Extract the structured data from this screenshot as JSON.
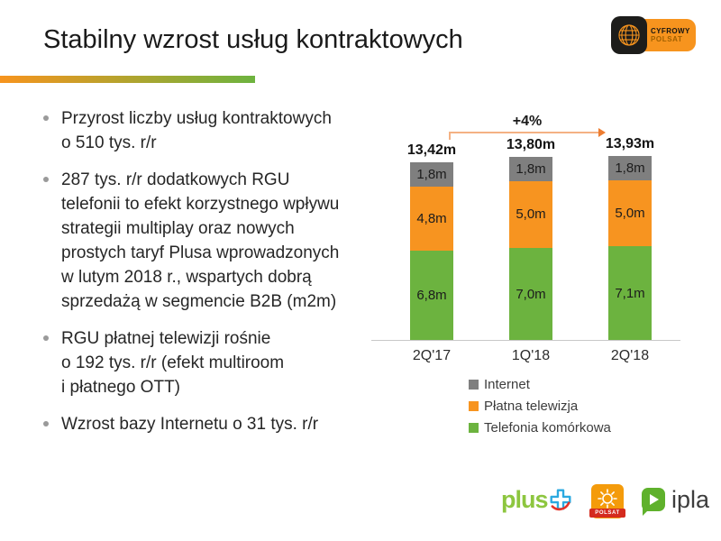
{
  "slide": {
    "title": "Stabilny wzrost usług kontraktowych",
    "bullets": [
      {
        "lines": [
          "Przyrost liczby usług kontraktowych",
          "o 510 tys. r/r"
        ]
      },
      {
        "lines": [
          "287 tys. r/r dodatkowych RGU",
          "telefonii to efekt korzystnego wpływu",
          "strategii multiplay oraz nowych",
          "prostych taryf Plusa wprowadzonych",
          "w lutym 2018 r., wspartych dobrą",
          "sprzedażą w segmencie B2B (m2m)"
        ]
      },
      {
        "lines": [
          "RGU płatnej telewizji rośnie",
          "o 192 tys. r/r (efekt multiroom",
          "i płatnego OTT)"
        ]
      },
      {
        "lines": [
          "Wzrost bazy Internetu o 31 tys. r/r"
        ]
      }
    ]
  },
  "chart_data": {
    "type": "bar",
    "stacked": true,
    "title": "",
    "categories": [
      "2Q'17",
      "1Q'18",
      "2Q'18"
    ],
    "series": [
      {
        "name": "Telefonia komórkowa",
        "color": "#6CB33F",
        "values": [
          6.8,
          7.0,
          7.1
        ],
        "value_labels": [
          "6,8m",
          "7,0m",
          "7,1m"
        ]
      },
      {
        "name": "Płatna telewizja",
        "color": "#F79420",
        "values": [
          4.8,
          5.0,
          5.0
        ],
        "value_labels": [
          "4,8m",
          "5,0m",
          "5,0m"
        ]
      },
      {
        "name": "Internet",
        "color": "#7F7F7F",
        "values": [
          1.8,
          1.8,
          1.8
        ],
        "value_labels": [
          "1,8m",
          "1,8m",
          "1,8m"
        ]
      }
    ],
    "totals": [
      13.42,
      13.8,
      13.93
    ],
    "total_labels": [
      "13,42m",
      "13,80m",
      "13,93m"
    ],
    "growth_annotation": "+4%",
    "unit_suffix": "m",
    "ylim": [
      0,
      14.5
    ],
    "grid": false,
    "legend_position": "bottom",
    "legend": [
      {
        "label": "Internet",
        "color": "#7F7F7F"
      },
      {
        "label": "Płatna telewizja",
        "color": "#F79420"
      },
      {
        "label": "Telefonia komórkowa",
        "color": "#6CB33F"
      }
    ]
  },
  "branding": {
    "cyfrowy_polsat": {
      "line1": "CYFROWY",
      "line2": "POLSAT"
    },
    "footer": {
      "plus_label": "plus",
      "polsat_label": "POLSAT",
      "ipla_label": "ipla"
    }
  },
  "colors": {
    "accent_orange": "#F7941E",
    "accent_green": "#6DB33F",
    "axis_line": "#C8C8C8",
    "arrow_line": "#F4B183",
    "arrow_head": "#ED7D31",
    "text_dark": "#262626"
  }
}
